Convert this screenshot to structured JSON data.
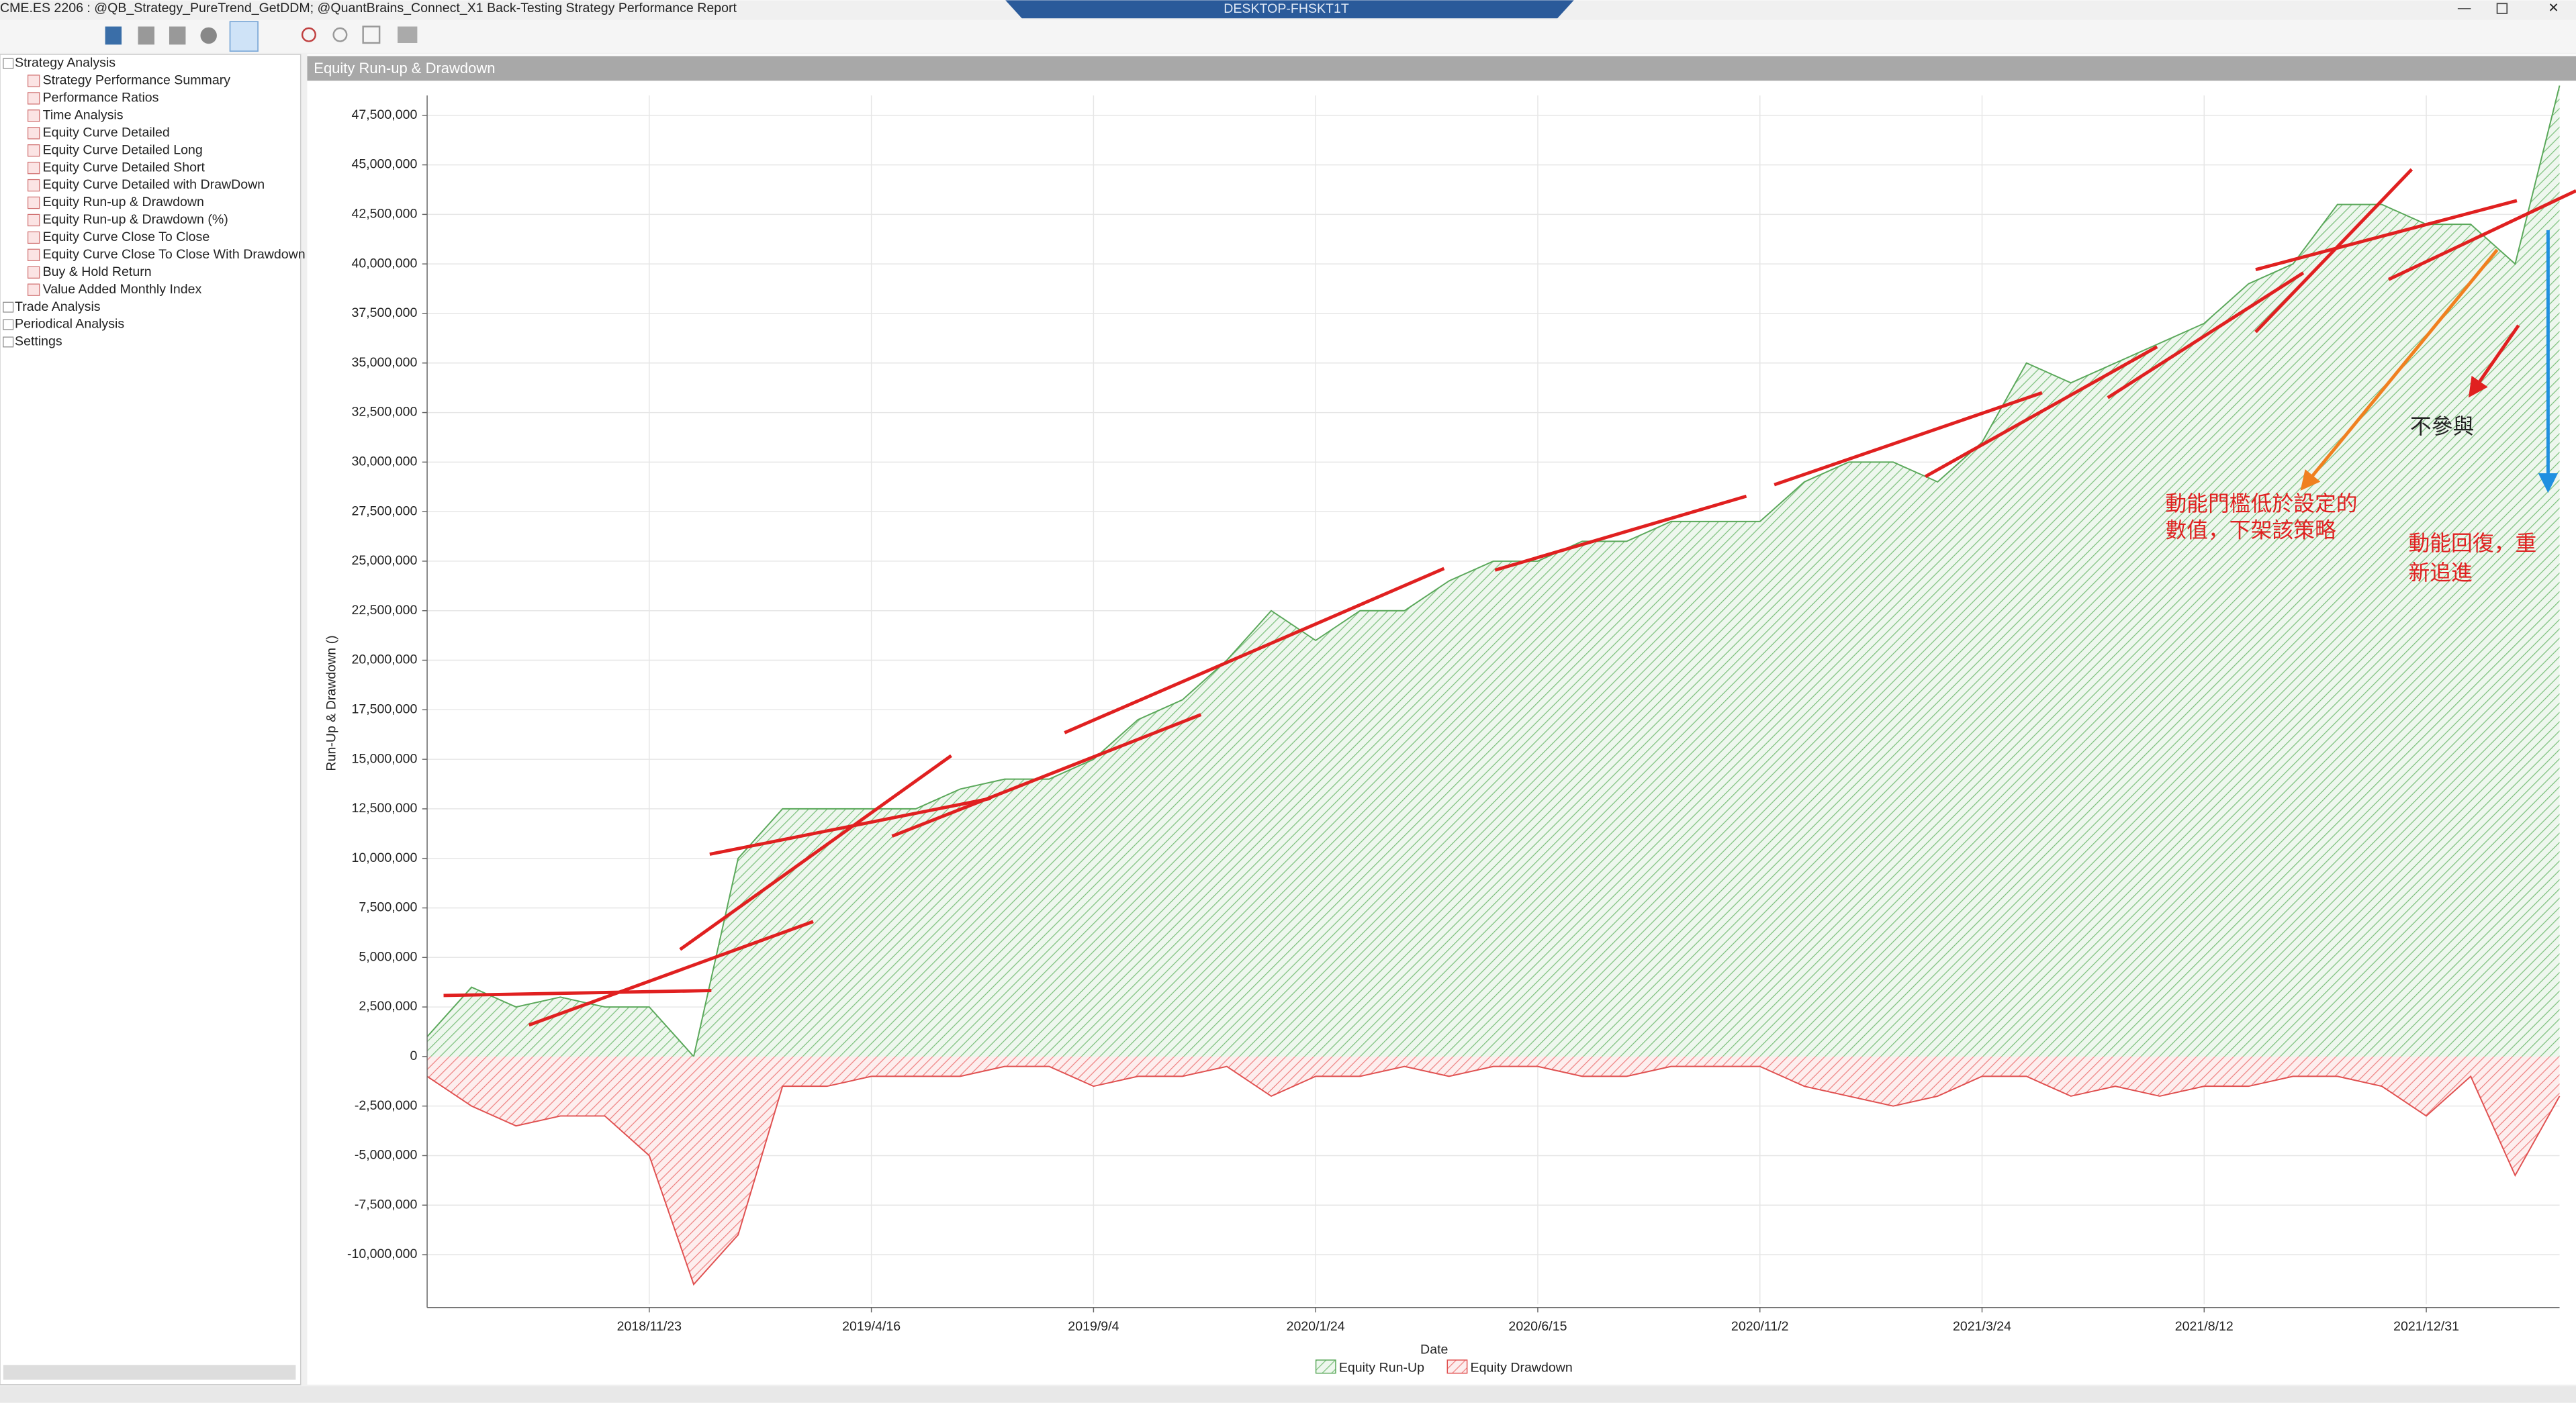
{
  "window": {
    "title": "CME.ES 2206 : @QB_Strategy_PureTrend_GetDDM; @QuantBrains_Connect_X1 Back-Testing Strategy Performance Report",
    "remote_host": "DESKTOP-FHSKT1T"
  },
  "tree": [
    {
      "label": "Strategy Analysis",
      "children": [
        "Strategy Performance Summary",
        "Performance Ratios",
        "Time Analysis",
        "Equity Curve Detailed",
        "Equity Curve Detailed Long",
        "Equity Curve Detailed Short",
        "Equity Curve Detailed with DrawDown",
        "Equity Run-up & Drawdown",
        "Equity Run-up & Drawdown (%)",
        "Equity Curve Close To Close",
        "Equity Curve Close To Close With Drawdown",
        "Buy & Hold Return",
        "Value Added Monthly Index"
      ]
    },
    {
      "label": "Trade Analysis"
    },
    {
      "label": "Periodical Analysis"
    },
    {
      "label": "Settings"
    }
  ],
  "panel_title": "Equity Run-up & Drawdown",
  "chart_data": {
    "type": "area",
    "y_label": "Run-Up & Drawdown ()",
    "x_label": "Date",
    "categories": [
      null,
      null,
      null,
      null,
      null,
      "2018/11/23",
      null,
      null,
      null,
      null,
      "2019/4/16",
      null,
      null,
      null,
      null,
      "2019/9/4",
      null,
      null,
      null,
      null,
      "2020/1/24",
      null,
      null,
      null,
      null,
      "2020/6/15",
      null,
      null,
      null,
      null,
      "2020/11/2",
      null,
      null,
      null,
      null,
      "2021/3/24",
      null,
      null,
      null,
      null,
      "2021/8/12",
      null,
      null,
      null,
      null,
      "2021/12/31",
      null,
      null,
      null
    ],
    "series": [
      {
        "name": "Equity Run-Up",
        "color": "#5aa85a",
        "values": [
          1000000,
          3500000,
          2500000,
          3000000,
          2500000,
          2500000,
          0,
          10000000,
          12500000,
          12500000,
          12500000,
          12500000,
          13500000,
          14000000,
          14000000,
          15000000,
          17000000,
          18000000,
          20000000,
          22500000,
          21000000,
          22500000,
          22500000,
          24000000,
          25000000,
          25000000,
          26000000,
          26000000,
          27000000,
          27000000,
          27000000,
          29000000,
          30000000,
          30000000,
          29000000,
          31000000,
          35000000,
          34000000,
          35000000,
          36000000,
          37000000,
          39000000,
          40000000,
          43000000,
          43000000,
          42000000,
          42000000,
          40000000,
          49000000
        ]
      },
      {
        "name": "Equity Drawdown",
        "color": "#e05050",
        "values": [
          -1000000,
          -2500000,
          -3500000,
          -3000000,
          -3000000,
          -5000000,
          -11500000,
          -9000000,
          -1500000,
          -1500000,
          -1000000,
          -1000000,
          -1000000,
          -500000,
          -500000,
          -1500000,
          -1000000,
          -1000000,
          -500000,
          -2000000,
          -1000000,
          -1000000,
          -500000,
          -1000000,
          -500000,
          -500000,
          -1000000,
          -1000000,
          -500000,
          -500000,
          -500000,
          -1500000,
          -2000000,
          -2500000,
          -2000000,
          -1000000,
          -1000000,
          -2000000,
          -1500000,
          -2000000,
          -1500000,
          -1500000,
          -1000000,
          -1000000,
          -1500000,
          -3000000,
          -1000000,
          -6000000,
          -2000000
        ]
      }
    ],
    "ylim": [
      -12500000,
      48500000
    ],
    "yticks": [
      {
        "value": -10000000,
        "label": "-10,000,000"
      },
      {
        "value": -7500000,
        "label": "-7,500,000"
      },
      {
        "value": -5000000,
        "label": "-5,000,000"
      },
      {
        "value": -2500000,
        "label": "-2,500,000"
      },
      0,
      {
        "value": 2500000,
        "label": "2,500,000"
      },
      {
        "value": 5000000,
        "label": "5,000,000"
      },
      {
        "value": 7500000,
        "label": "7,500,000"
      },
      {
        "value": 10000000,
        "label": "10,000,000"
      },
      {
        "value": 12500000,
        "label": "12,500,000"
      },
      {
        "value": 15000000,
        "label": "15,000,000"
      },
      {
        "value": 17500000,
        "label": "17,500,000"
      },
      {
        "value": 20000000,
        "label": "20,000,000"
      },
      {
        "value": 22500000,
        "label": "22,500,000"
      },
      {
        "value": 25000000,
        "label": "25,000,000"
      },
      {
        "value": 27500000,
        "label": "27,500,000"
      },
      {
        "value": 30000000,
        "label": "30,000,000"
      },
      {
        "value": 32500000,
        "label": "32,500,000"
      },
      {
        "value": 35000000,
        "label": "35,000,000"
      },
      {
        "value": 37500000,
        "label": "37,500,000"
      },
      {
        "value": 40000000,
        "label": "40,000,000"
      },
      {
        "value": 42500000,
        "label": "42,500,000"
      },
      {
        "value": 45000000,
        "label": "45,000,000"
      },
      {
        "value": 47500000,
        "label": "47,500,000"
      }
    ],
    "grid": true,
    "legend": "bottom",
    "annotations": [
      [
        "不參與"
      ],
      [
        "動能門檻低於設定的",
        "數值，下架該策略"
      ],
      [
        "動能回復，重",
        "新追進"
      ]
    ]
  }
}
